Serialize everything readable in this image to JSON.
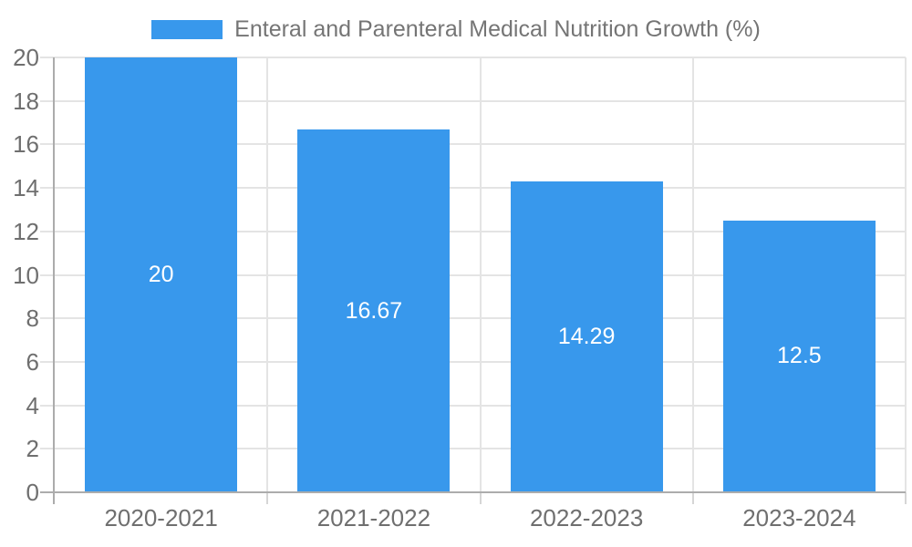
{
  "chart_data": {
    "type": "bar",
    "title": "Enteral and Parenteral Medical Nutrition Growth (%)",
    "categories": [
      "2020-2021",
      "2021-2022",
      "2022-2023",
      "2023-2024"
    ],
    "values": [
      20,
      16.67,
      14.29,
      12.5
    ],
    "value_labels": [
      "20",
      "16.67",
      "14.29",
      "12.5"
    ],
    "xlabel": "",
    "ylabel": "",
    "ylim": [
      0,
      20
    ],
    "yticks": [
      0,
      2,
      4,
      6,
      8,
      10,
      12,
      14,
      16,
      18,
      20
    ],
    "grid": true,
    "legend_position": "top",
    "colors": {
      "bar": "#3898EC",
      "grid": "#E4E4E4",
      "axis": "#ACACAC",
      "minor_tick": "#D6D6D6",
      "tick_label": "#6F6F6F",
      "legend_text": "#757575",
      "value_label": "#FFFFFF",
      "background": "#FFFFFF"
    }
  }
}
